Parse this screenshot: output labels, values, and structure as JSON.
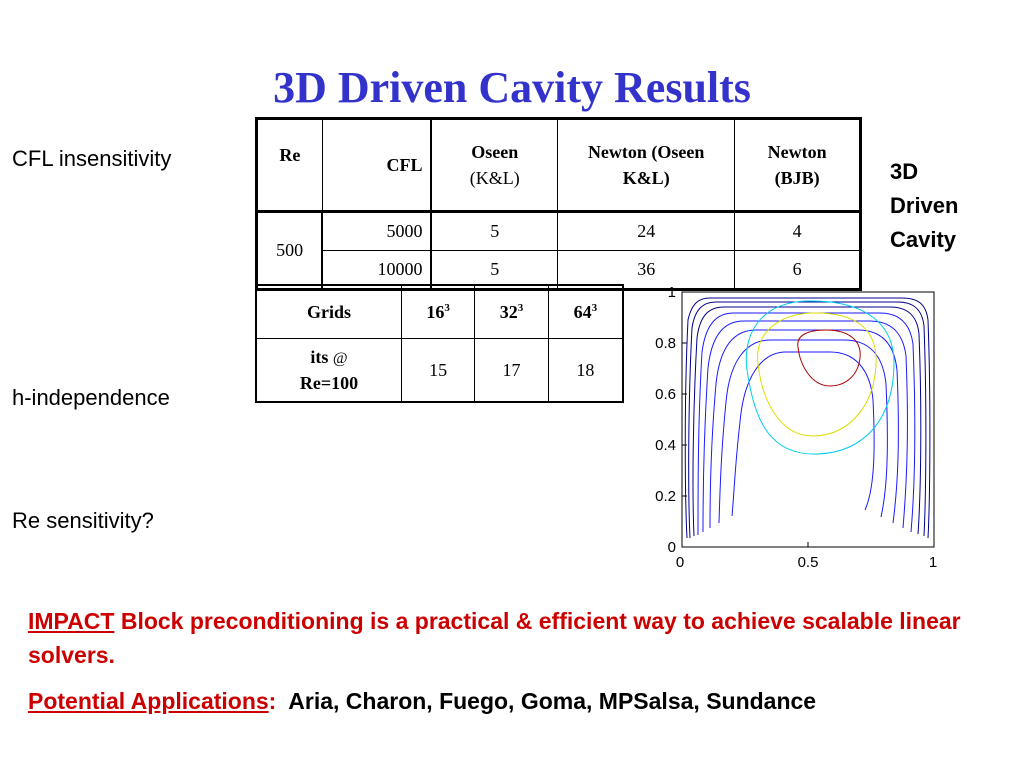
{
  "title": "3D Driven Cavity Results",
  "labels": {
    "cfl": "CFL insensitivity",
    "h": "h-independence",
    "re": "Re sensitivity?",
    "right_line1": "3D",
    "right_line2": "Driven",
    "right_line3": "Cavity"
  },
  "table1": {
    "headers": {
      "re": "Re",
      "cfl": "CFL",
      "oseen_l1": "Oseen",
      "oseen_l2": "(K&L)",
      "newton_oseen_l1": "Newton (Oseen",
      "newton_oseen_l2": "K&L)",
      "newton_l1": "Newton",
      "newton_l2": "(BJB)"
    },
    "re_value": "500",
    "rows": [
      {
        "cfl": "5000",
        "oseen": "5",
        "newton_oseen": "24",
        "newton": "4"
      },
      {
        "cfl": "10000",
        "oseen": "5",
        "newton_oseen": "36",
        "newton": "6"
      }
    ]
  },
  "table2": {
    "header_grids": "Grids",
    "grids": [
      {
        "base": "16",
        "exp": "3"
      },
      {
        "base": "32",
        "exp": "3"
      },
      {
        "base": "64",
        "exp": "3"
      }
    ],
    "row_label_l1": "its",
    "row_label_at": "@",
    "row_label_l2": "Re=100",
    "values": [
      "15",
      "17",
      "18"
    ]
  },
  "plot": {
    "y_ticks": [
      "1",
      "0.8",
      "0.6",
      "0.4",
      "0.2",
      "0"
    ],
    "x_ticks": [
      "0",
      "0.5",
      "1"
    ],
    "xlim": [
      0,
      1
    ],
    "ylim": [
      0,
      1
    ],
    "colors": {
      "outer": "#00008b",
      "blue": "#1a1aff",
      "cyan": "#00ccee",
      "yellow": "#dddd00",
      "red": "#aa0000"
    }
  },
  "impact": {
    "label": "IMPACT",
    "text": " Block preconditioning is a practical & efficient way to achieve scalable linear solvers."
  },
  "apps": {
    "label": "Potential Applications",
    "colon": ":",
    "text": "  Aria, Charon, Fuego, Goma, MPSalsa, Sundance"
  }
}
